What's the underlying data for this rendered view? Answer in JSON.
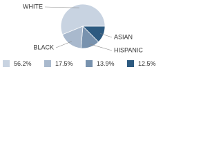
{
  "chart_data": {
    "type": "pie",
    "categories": [
      "WHITE",
      "ASIAN",
      "HISPANIC",
      "BLACK"
    ],
    "values": [
      56.2,
      12.5,
      13.9,
      17.5
    ],
    "value_labels": [
      "56.2%",
      "12.5%",
      "13.9%",
      "17.5%"
    ],
    "colors": [
      "#c8d3e1",
      "#2d5a80",
      "#7892ae",
      "#a9b9cd"
    ],
    "legend_order": [
      0,
      3,
      2,
      1
    ]
  }
}
